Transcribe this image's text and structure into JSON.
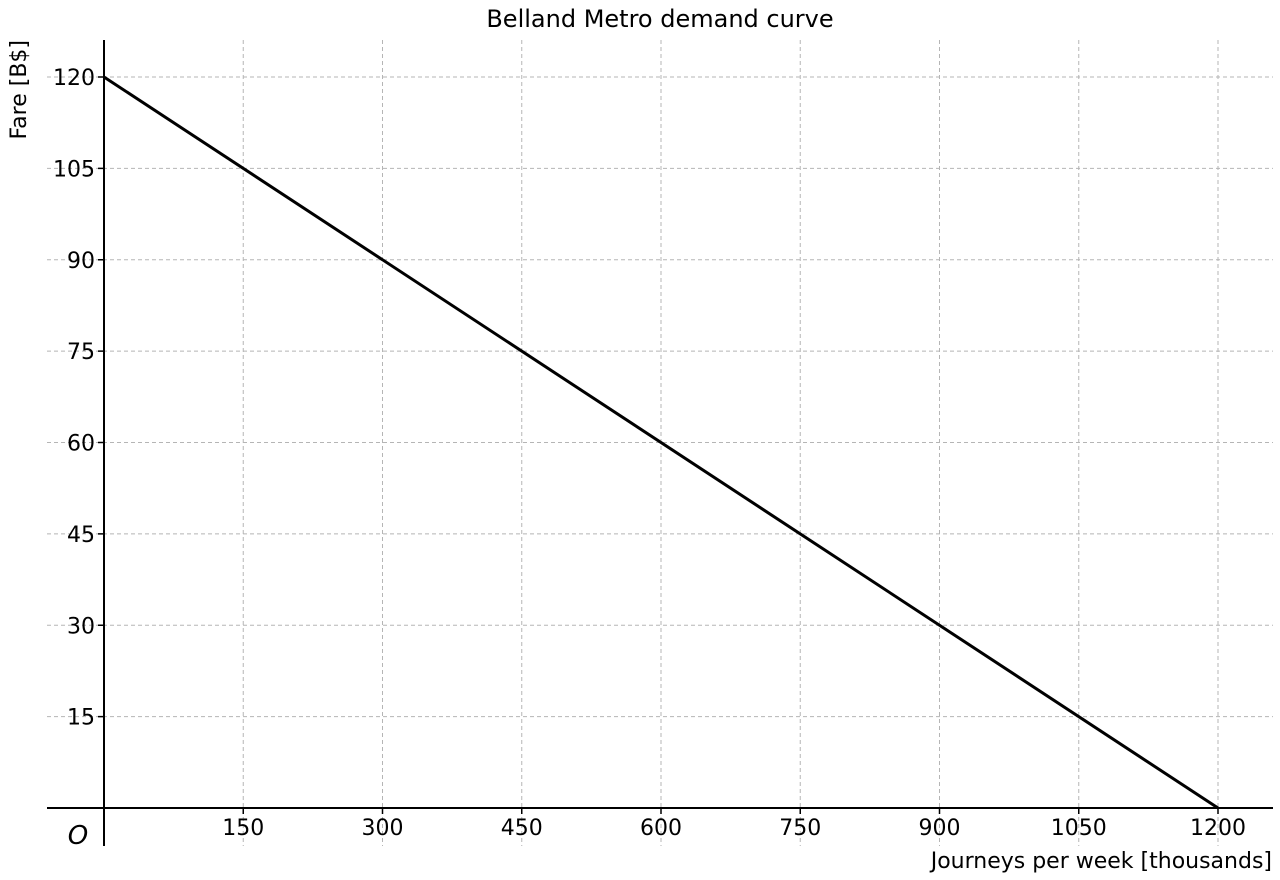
{
  "chart_data": {
    "type": "line",
    "title": "Belland Metro demand curve",
    "xlabel": "Journeys per week [thousands]",
    "ylabel": "Fare [B$]",
    "origin_label": "O",
    "xlim": [
      0,
      1200
    ],
    "ylim": [
      0,
      120
    ],
    "xticks": [
      150,
      300,
      450,
      600,
      750,
      900,
      1050,
      1200
    ],
    "yticks": [
      15,
      30,
      45,
      60,
      75,
      90,
      105,
      120
    ],
    "grid": true,
    "series": [
      {
        "x": [
          0,
          1200
        ],
        "y": [
          120,
          0
        ]
      }
    ],
    "colors": {
      "line": "#000000",
      "grid": "#b5b5b5"
    }
  }
}
